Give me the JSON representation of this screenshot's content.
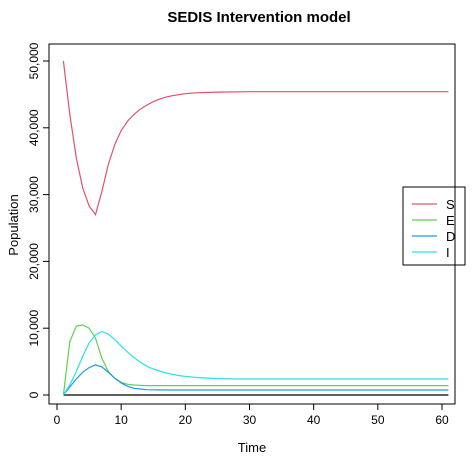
{
  "chart_data": {
    "type": "line",
    "title": "SEDIS Intervention model",
    "xlabel": "Time",
    "ylabel": "Population",
    "xlim": [
      0,
      63
    ],
    "ylim": [
      -1000,
      52000
    ],
    "xticks": [
      0,
      10,
      20,
      30,
      40,
      50,
      60
    ],
    "xtick_labels": [
      "0",
      "10",
      "20",
      "30",
      "40",
      "50",
      "60"
    ],
    "yticks": [
      0,
      10000,
      20000,
      30000,
      40000,
      50000
    ],
    "ytick_labels": [
      "0",
      "10,000",
      "20,000",
      "30,000",
      "40,000",
      "50,000"
    ],
    "legend_position": "right",
    "series": [
      {
        "name": "S",
        "color": "#DF536B",
        "x": [
          1,
          2,
          3,
          4,
          5,
          6,
          7,
          8,
          9,
          10,
          11,
          12,
          13,
          14,
          15,
          16,
          17,
          18,
          20,
          22,
          25,
          30,
          35,
          40,
          45,
          50,
          55,
          61
        ],
        "values": [
          50000,
          42000,
          35500,
          31000,
          28300,
          27000,
          30500,
          34500,
          37500,
          39600,
          41000,
          42000,
          42800,
          43400,
          43900,
          44300,
          44600,
          44800,
          45100,
          45250,
          45350,
          45400,
          45400,
          45400,
          45400,
          45400,
          45400,
          45400
        ]
      },
      {
        "name": "E",
        "color": "#61D04F",
        "x": [
          1,
          2,
          3,
          4,
          5,
          6,
          7,
          8,
          9,
          10,
          11,
          12,
          13,
          14,
          15,
          20,
          25,
          30,
          40,
          50,
          61
        ],
        "values": [
          0,
          8000,
          10300,
          10500,
          10000,
          8500,
          5500,
          3500,
          2500,
          1900,
          1600,
          1500,
          1450,
          1400,
          1400,
          1400,
          1400,
          1400,
          1400,
          1400,
          1400
        ]
      },
      {
        "name": "D",
        "color": "#2297E6",
        "x": [
          1,
          2,
          3,
          4,
          5,
          6,
          7,
          8,
          9,
          10,
          11,
          12,
          13,
          14,
          15,
          16,
          18,
          20,
          25,
          30,
          40,
          50,
          61
        ],
        "values": [
          0,
          1200,
          2400,
          3400,
          4100,
          4500,
          4200,
          3400,
          2500,
          1800,
          1300,
          1000,
          900,
          800,
          780,
          760,
          750,
          750,
          750,
          750,
          750,
          750,
          750
        ]
      },
      {
        "name": "I",
        "color": "#28E2E5",
        "x": [
          1,
          2,
          3,
          4,
          5,
          6,
          7,
          8,
          9,
          10,
          11,
          12,
          13,
          14,
          15,
          16,
          17,
          18,
          19,
          20,
          22,
          25,
          28,
          30,
          35,
          40,
          50,
          61
        ],
        "values": [
          0,
          1500,
          3500,
          5800,
          7800,
          9000,
          9500,
          9100,
          8300,
          7300,
          6400,
          5600,
          4900,
          4300,
          3900,
          3600,
          3300,
          3100,
          2900,
          2800,
          2600,
          2450,
          2400,
          2400,
          2400,
          2400,
          2400,
          2400
        ]
      }
    ],
    "extra_series": [
      {
        "color": "#000000",
        "x": [
          1,
          61
        ],
        "values": [
          0,
          0
        ]
      }
    ]
  }
}
